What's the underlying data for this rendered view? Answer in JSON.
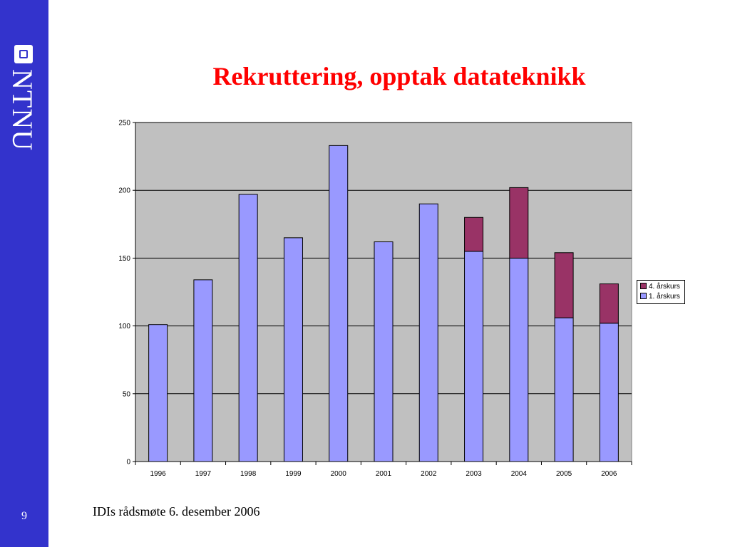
{
  "sidebar": {
    "logo_text": "NTNU",
    "page_number": "9"
  },
  "slide": {
    "title": "Rekruttering, opptak datateknikk",
    "footer": "IDIs rådsmøte 6. desember 2006"
  },
  "chart_data": {
    "type": "bar",
    "stacked": true,
    "title": "",
    "xlabel": "",
    "ylabel": "",
    "categories": [
      "1996",
      "1997",
      "1998",
      "1999",
      "2000",
      "2001",
      "2002",
      "2003",
      "2004",
      "2005",
      "2006"
    ],
    "series": [
      {
        "name": "1. årskurs",
        "color": "#9999ff",
        "values": [
          101,
          134,
          197,
          165,
          233,
          162,
          190,
          155,
          150,
          106,
          102
        ]
      },
      {
        "name": "4. årskurs",
        "color": "#993366",
        "values": [
          0,
          0,
          0,
          0,
          0,
          0,
          0,
          25,
          52,
          48,
          29
        ]
      }
    ],
    "ylim": [
      0,
      250
    ],
    "yticks": [
      "0",
      "50",
      "100",
      "150",
      "200",
      "250"
    ],
    "grid": true,
    "plot_background": "#c0c0c0",
    "legend_position": "right",
    "legend_order": [
      1,
      0
    ]
  }
}
